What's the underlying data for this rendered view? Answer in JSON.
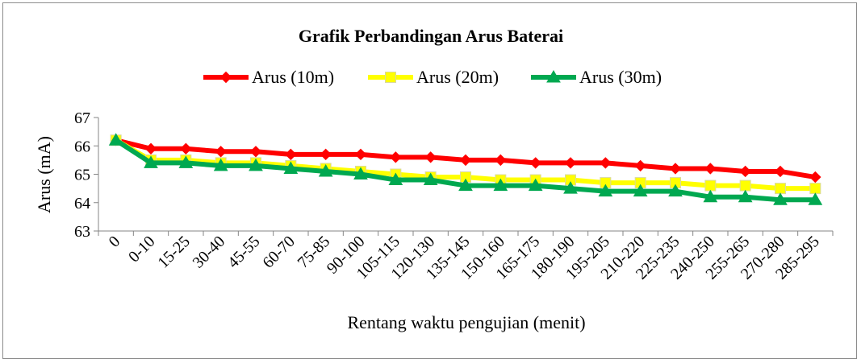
{
  "chart_data": {
    "type": "line",
    "title": "Grafik Perbandingan Arus Baterai",
    "xlabel": "Rentang waktu pengujian (menit)",
    "ylabel": "Arus (mA)",
    "ylim": [
      63,
      67
    ],
    "yticks": [
      63,
      64,
      65,
      66,
      67
    ],
    "grid": false,
    "legend_position": "top",
    "categories": [
      "0",
      "0-10",
      "15-25",
      "30-40",
      "45-55",
      "60-70",
      "75-85",
      "90-100",
      "105-115",
      "120-130",
      "135-145",
      "150-160",
      "165-175",
      "180-190",
      "195-205",
      "210-220",
      "225-235",
      "240-250",
      "255-265",
      "270-280",
      "285-295"
    ],
    "series": [
      {
        "name": "Arus (10m)",
        "color": "#ff0000",
        "marker": "diamond",
        "values": [
          66.2,
          65.9,
          65.9,
          65.8,
          65.8,
          65.7,
          65.7,
          65.7,
          65.6,
          65.6,
          65.5,
          65.5,
          65.4,
          65.4,
          65.4,
          65.3,
          65.2,
          65.2,
          65.1,
          65.1,
          64.9
        ]
      },
      {
        "name": "Arus (20m)",
        "color": "#ffff00",
        "marker": "square",
        "values": [
          66.2,
          65.5,
          65.5,
          65.4,
          65.4,
          65.3,
          65.2,
          65.1,
          65.0,
          64.9,
          64.9,
          64.8,
          64.8,
          64.8,
          64.7,
          64.7,
          64.7,
          64.6,
          64.6,
          64.5,
          64.5
        ]
      },
      {
        "name": "Arus (30m)",
        "color": "#00a850",
        "marker": "triangle",
        "values": [
          66.2,
          65.4,
          65.4,
          65.3,
          65.3,
          65.2,
          65.1,
          65.0,
          64.8,
          64.8,
          64.6,
          64.6,
          64.6,
          64.5,
          64.4,
          64.4,
          64.4,
          64.2,
          64.2,
          64.1,
          64.1
        ]
      }
    ]
  }
}
